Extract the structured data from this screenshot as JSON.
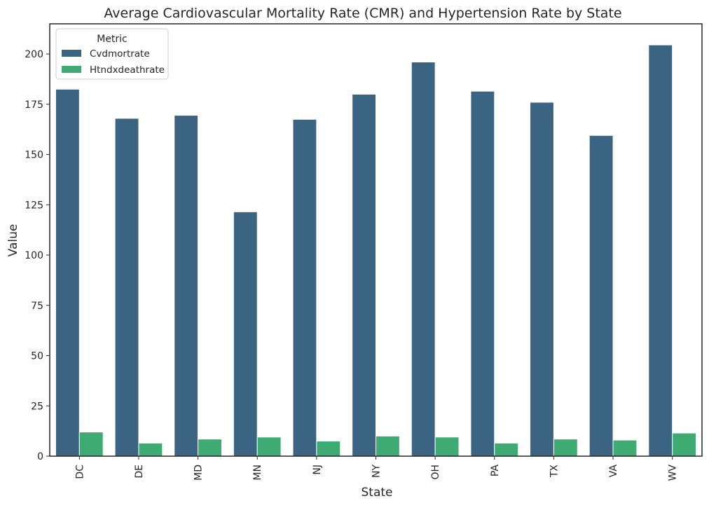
{
  "chart_data": {
    "type": "bar",
    "title": "Average Cardiovascular Mortality Rate (CMR) and Hypertension Rate by State",
    "xlabel": "State",
    "ylabel": "Value",
    "categories": [
      "DC",
      "DE",
      "MD",
      "MN",
      "NJ",
      "NY",
      "OH",
      "PA",
      "TX",
      "VA",
      "WV"
    ],
    "series": [
      {
        "name": "Cvdmortrate",
        "color": "#3b6483",
        "values": [
          182.5,
          168,
          169.5,
          121.5,
          167.5,
          180,
          196,
          181.5,
          176,
          159.5,
          204.5
        ]
      },
      {
        "name": "Htndxdeathrate",
        "color": "#3dab72",
        "values": [
          12,
          6.5,
          8.5,
          9.5,
          7.5,
          10,
          9.5,
          6.5,
          8.5,
          8,
          11.5
        ]
      }
    ],
    "ylim": [
      0,
      215
    ],
    "yticks": [
      0,
      25,
      50,
      75,
      100,
      125,
      150,
      175,
      200
    ],
    "grid": false,
    "legend": {
      "title": "Metric",
      "position": "top-left"
    }
  }
}
